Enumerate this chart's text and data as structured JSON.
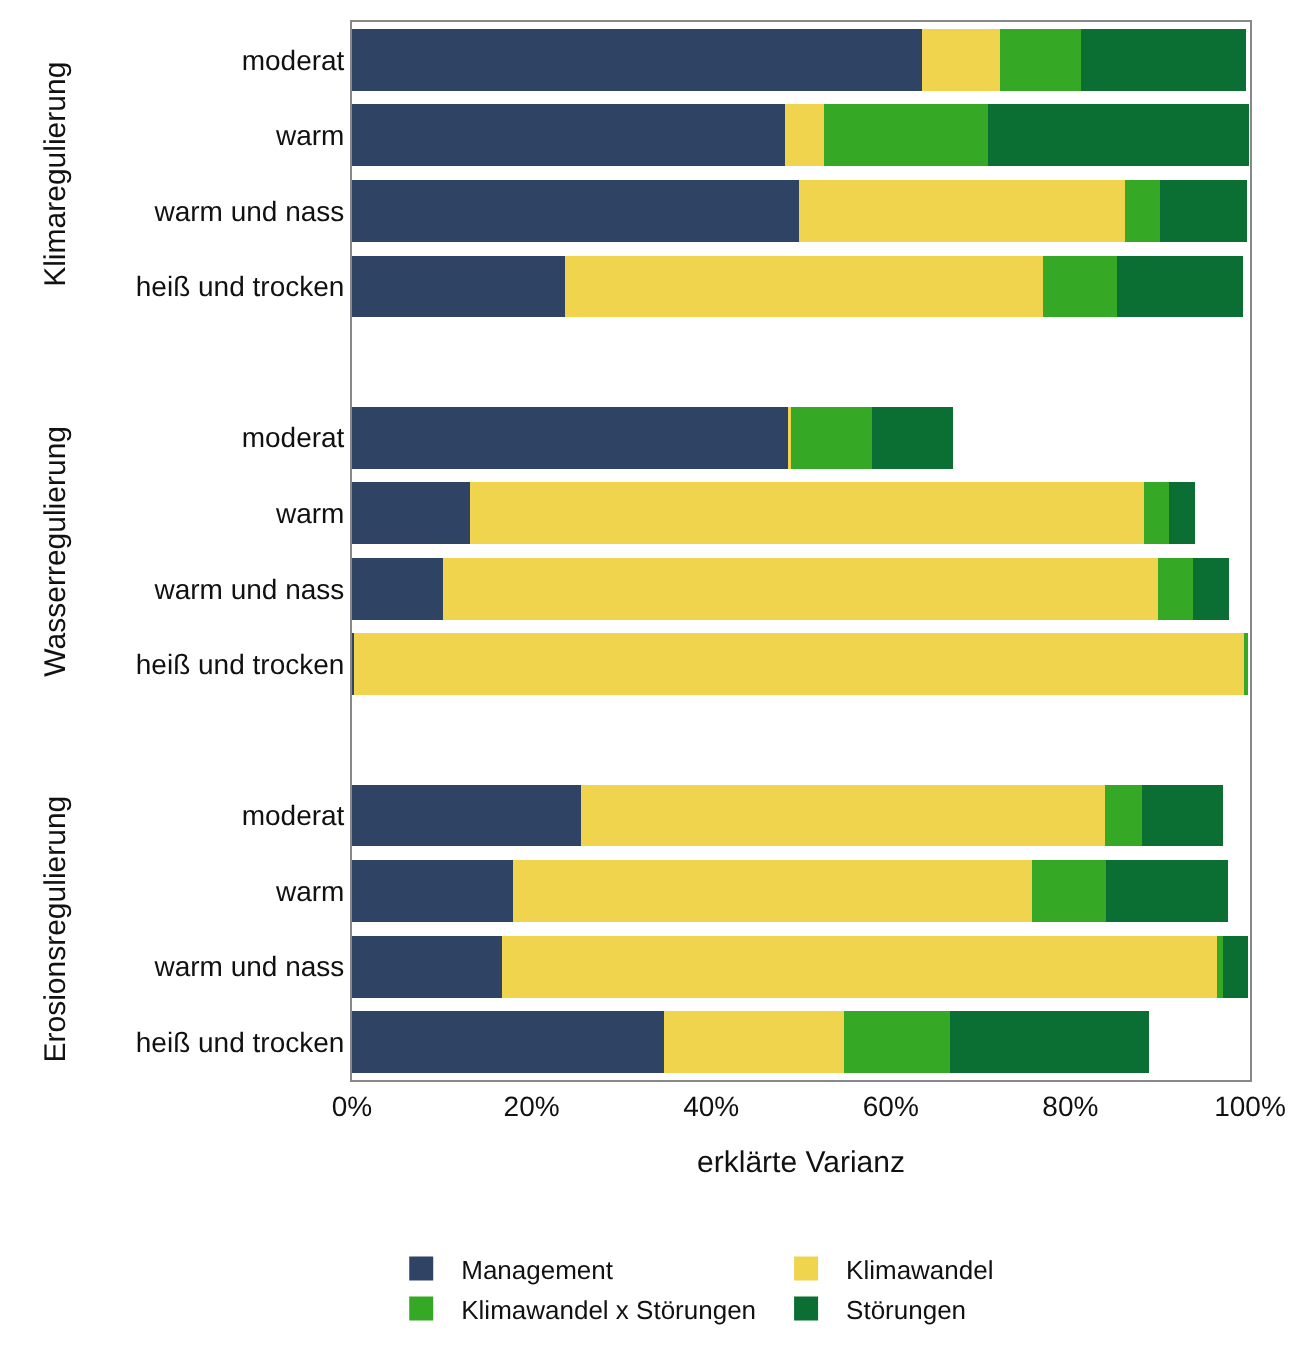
{
  "chart_data": {
    "type": "bar",
    "orientation": "horizontal",
    "stacked": true,
    "categories": [
      "moderat",
      "warm",
      "warm und nass",
      "heiß und trocken",
      null,
      "moderat",
      "warm",
      "warm und nass",
      "heiß und trocken",
      null,
      "moderat",
      "warm",
      "warm und nass",
      "heiß und trocken"
    ],
    "series": [
      {
        "name": "Management",
        "color": "#2f4465",
        "values": [
          63.5,
          48.2,
          49.8,
          23.7,
          null,
          48.6,
          13.1,
          10.1,
          0.2,
          null,
          25.5,
          17.9,
          16.7,
          34.7
        ]
      },
      {
        "name": "Klimawandel",
        "color": "#f0d44e",
        "values": [
          8.7,
          4.4,
          36.3,
          53.2,
          null,
          0.3,
          75.1,
          79.7,
          99.2,
          null,
          58.3,
          57.8,
          79.6,
          20.1
        ]
      },
      {
        "name": "Klimawandel x Störungen",
        "color": "#35a826",
        "values": [
          9.0,
          18.2,
          3.9,
          8.3,
          null,
          9.0,
          2.8,
          3.9,
          0.4,
          null,
          4.2,
          8.3,
          0.7,
          11.8
        ]
      },
      {
        "name": "Störungen",
        "color": "#0b6e32",
        "values": [
          18.4,
          29.1,
          9.7,
          14.0,
          null,
          9.0,
          2.9,
          4.0,
          0,
          null,
          9.0,
          13.5,
          2.8,
          22.1
        ]
      }
    ],
    "xlabel": "erklärte Varianz",
    "xlim": [
      0,
      100
    ],
    "xticks": [
      {
        "value": 0,
        "label": "0%"
      },
      {
        "value": 20,
        "label": "20%"
      },
      {
        "value": 40,
        "label": "40%"
      },
      {
        "value": 60,
        "label": "60%"
      },
      {
        "value": 80,
        "label": "80%"
      },
      {
        "value": 100,
        "label": "100%"
      }
    ],
    "annotations": [
      "Klimaregulierung",
      "Wasserregulierung",
      "Erosionsregulierung"
    ],
    "legend": "bottom"
  }
}
